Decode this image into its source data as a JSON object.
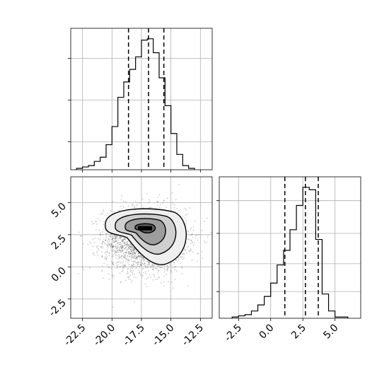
{
  "chart_data": [
    {
      "type": "histogram",
      "panel": "top-left",
      "xlim": [
        -23.5,
        -11.5
      ],
      "grid": true,
      "bins": {
        "edges": [
          -23.0,
          -22.5,
          -22.0,
          -21.5,
          -21.0,
          -20.5,
          -20.0,
          -19.5,
          -19.0,
          -18.5,
          -18.0,
          -17.5,
          -17.0,
          -16.5,
          -16.0,
          -15.5,
          -15.0,
          -14.5,
          -14.0,
          -13.5,
          -13.0
        ],
        "counts": [
          1,
          2,
          3,
          6,
          9,
          18,
          31,
          52,
          63,
          72,
          81,
          93,
          94,
          84,
          66,
          46,
          26,
          11,
          3,
          1
        ]
      },
      "quantile_lines": [
        -18.6,
        -16.9,
        -15.6
      ],
      "ticks": [
        "-22.5",
        "-20.0",
        "-17.5",
        "-15.0",
        "-12.5"
      ]
    },
    {
      "type": "scatter-contour",
      "panel": "bottom-left",
      "xlim": [
        -23.5,
        -11.5
      ],
      "ylim": [
        -4.0,
        7.0
      ],
      "grid": true,
      "density_peak": {
        "x": -17.2,
        "y": 3.0
      },
      "contour_levels": 4,
      "xticks": [
        "-22.5",
        "-20.0",
        "-17.5",
        "-15.0",
        "-12.5"
      ],
      "yticks": [
        "-2.5",
        "0.0",
        "2.5",
        "5.0"
      ]
    },
    {
      "type": "histogram",
      "panel": "bottom-right",
      "xlim": [
        -4.0,
        7.0
      ],
      "grid": true,
      "bins": {
        "edges": [
          -3.0,
          -2.5,
          -2.0,
          -1.5,
          -1.0,
          -0.5,
          0.0,
          0.5,
          1.0,
          1.5,
          2.0,
          2.5,
          3.0,
          3.5,
          4.0,
          4.5,
          5.0,
          5.5,
          6.0
        ],
        "counts": [
          1,
          2,
          3,
          6,
          11,
          18,
          29,
          44,
          56,
          73,
          93,
          108,
          106,
          65,
          20,
          6,
          1,
          1
        ]
      },
      "quantile_lines": [
        1.1,
        2.7,
        3.7
      ],
      "ticks": [
        "-2.5",
        "0.0",
        "2.5",
        "5.0"
      ]
    }
  ]
}
